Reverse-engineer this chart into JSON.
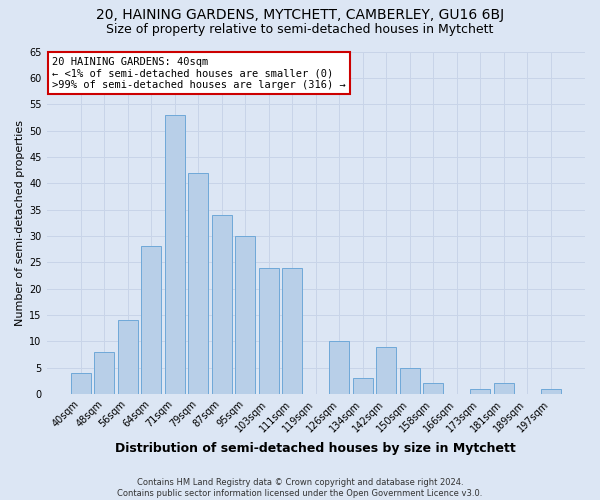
{
  "title": "20, HAINING GARDENS, MYTCHETT, CAMBERLEY, GU16 6BJ",
  "subtitle": "Size of property relative to semi-detached houses in Mytchett",
  "xlabel": "Distribution of semi-detached houses by size in Mytchett",
  "ylabel": "Number of semi-detached properties",
  "footer_line1": "Contains HM Land Registry data © Crown copyright and database right 2024.",
  "footer_line2": "Contains public sector information licensed under the Open Government Licence v3.0.",
  "annotation_title": "20 HAINING GARDENS: 40sqm",
  "annotation_line1": "← <1% of semi-detached houses are smaller (0)",
  "annotation_line2": ">99% of semi-detached houses are larger (316) →",
  "bar_labels": [
    "40sqm",
    "48sqm",
    "56sqm",
    "64sqm",
    "71sqm",
    "79sqm",
    "87sqm",
    "95sqm",
    "103sqm",
    "111sqm",
    "119sqm",
    "126sqm",
    "134sqm",
    "142sqm",
    "150sqm",
    "158sqm",
    "166sqm",
    "173sqm",
    "181sqm",
    "189sqm",
    "197sqm"
  ],
  "bar_values": [
    4,
    8,
    14,
    28,
    53,
    42,
    34,
    30,
    24,
    24,
    0,
    10,
    3,
    9,
    5,
    2,
    0,
    1,
    2,
    0,
    1
  ],
  "bar_color": "#b8cfe8",
  "bar_edge_color": "#6fa8d8",
  "ylim": [
    0,
    65
  ],
  "yticks": [
    0,
    5,
    10,
    15,
    20,
    25,
    30,
    35,
    40,
    45,
    50,
    55,
    60,
    65
  ],
  "grid_color": "#c8d4e8",
  "background_color": "#dce6f4",
  "annotation_box_color": "#ffffff",
  "annotation_box_edge": "#cc0000",
  "title_fontsize": 10,
  "subtitle_fontsize": 9,
  "xlabel_fontsize": 9,
  "ylabel_fontsize": 8,
  "tick_label_fontsize": 7,
  "annotation_fontsize": 7.5,
  "footer_fontsize": 6
}
